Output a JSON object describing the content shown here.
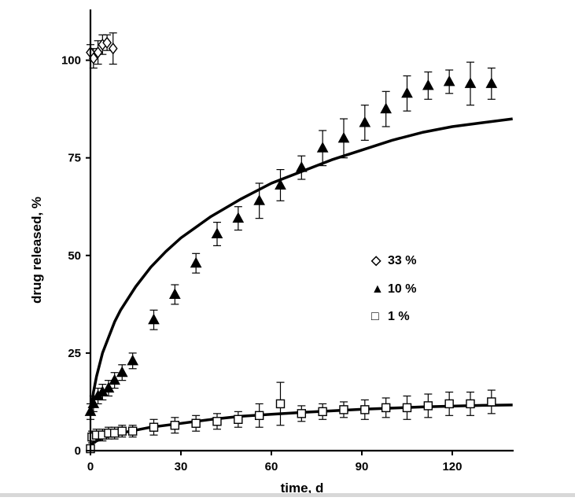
{
  "chart_data": {
    "type": "scatter",
    "title": "",
    "xlabel": "time, d",
    "ylabel": "drug released, %",
    "xlim": [
      0,
      140
    ],
    "ylim": [
      0,
      110
    ],
    "x_ticks": [
      0,
      30,
      60,
      90,
      120
    ],
    "y_ticks": [
      0,
      25,
      50,
      75,
      100
    ],
    "x_tick_labels": [
      "0",
      "30",
      "60",
      "90",
      "120"
    ],
    "y_tick_labels": [
      "0",
      "25",
      "50",
      "75",
      "100"
    ],
    "grid": false,
    "legend_position": "center-right",
    "series": [
      {
        "name": "33 %",
        "marker": "open-diamond",
        "points": [
          {
            "x": 0,
            "y": 102,
            "err": 2
          },
          {
            "x": 1,
            "y": 100.5,
            "err": 2.5
          },
          {
            "x": 2.5,
            "y": 102,
            "err": 3
          },
          {
            "x": 4,
            "y": 104,
            "err": 2.5
          },
          {
            "x": 5.5,
            "y": 104.5,
            "err": 2
          },
          {
            "x": 7.5,
            "y": 103,
            "err": 4
          }
        ]
      },
      {
        "name": "10 %",
        "marker": "filled-triangle",
        "points": [
          {
            "x": 0,
            "y": 10,
            "err": 2
          },
          {
            "x": 1,
            "y": 12,
            "err": 2
          },
          {
            "x": 2.5,
            "y": 14,
            "err": 2
          },
          {
            "x": 4,
            "y": 15,
            "err": 2
          },
          {
            "x": 6,
            "y": 16,
            "err": 2
          },
          {
            "x": 8,
            "y": 18,
            "err": 2
          },
          {
            "x": 10.5,
            "y": 20,
            "err": 2
          },
          {
            "x": 14,
            "y": 23,
            "err": 2
          },
          {
            "x": 21,
            "y": 33.5,
            "err": 2.5
          },
          {
            "x": 28,
            "y": 40,
            "err": 2.5
          },
          {
            "x": 35,
            "y": 48,
            "err": 2.5
          },
          {
            "x": 42,
            "y": 55.5,
            "err": 3
          },
          {
            "x": 49,
            "y": 59.5,
            "err": 3
          },
          {
            "x": 56,
            "y": 64,
            "err": 4.5
          },
          {
            "x": 63,
            "y": 68,
            "err": 4
          },
          {
            "x": 70,
            "y": 72.5,
            "err": 3
          },
          {
            "x": 77,
            "y": 77.5,
            "err": 4.5
          },
          {
            "x": 84,
            "y": 80,
            "err": 5
          },
          {
            "x": 91,
            "y": 84,
            "err": 4.5
          },
          {
            "x": 98,
            "y": 87.5,
            "err": 4.5
          },
          {
            "x": 105,
            "y": 91.5,
            "err": 4.5
          },
          {
            "x": 112,
            "y": 93.5,
            "err": 3.5
          },
          {
            "x": 119,
            "y": 94.5,
            "err": 3
          },
          {
            "x": 126,
            "y": 94,
            "err": 5.5
          },
          {
            "x": 133,
            "y": 94,
            "err": 4
          }
        ]
      },
      {
        "name": "1 %",
        "marker": "open-square",
        "points": [
          {
            "x": 0,
            "y": 0.5,
            "err": 0.5
          },
          {
            "x": 0.5,
            "y": 3.5,
            "err": 1.5
          },
          {
            "x": 2,
            "y": 4,
            "err": 1.5
          },
          {
            "x": 4,
            "y": 4,
            "err": 1.5
          },
          {
            "x": 6,
            "y": 4.5,
            "err": 1.5
          },
          {
            "x": 8,
            "y": 4.5,
            "err": 1.5
          },
          {
            "x": 10.5,
            "y": 5,
            "err": 1.5
          },
          {
            "x": 14,
            "y": 5,
            "err": 1.5
          },
          {
            "x": 21,
            "y": 6,
            "err": 2
          },
          {
            "x": 28,
            "y": 6.5,
            "err": 2
          },
          {
            "x": 35,
            "y": 7,
            "err": 2
          },
          {
            "x": 42,
            "y": 7.5,
            "err": 2
          },
          {
            "x": 49,
            "y": 8,
            "err": 2
          },
          {
            "x": 56,
            "y": 9,
            "err": 3
          },
          {
            "x": 63,
            "y": 12,
            "err": 5.5
          },
          {
            "x": 70,
            "y": 9.5,
            "err": 2
          },
          {
            "x": 77,
            "y": 10,
            "err": 2
          },
          {
            "x": 84,
            "y": 10.5,
            "err": 2
          },
          {
            "x": 91,
            "y": 10.5,
            "err": 2.5
          },
          {
            "x": 98,
            "y": 11,
            "err": 2.5
          },
          {
            "x": 105,
            "y": 11,
            "err": 3
          },
          {
            "x": 112,
            "y": 11.5,
            "err": 3
          },
          {
            "x": 119,
            "y": 12,
            "err": 3
          },
          {
            "x": 126,
            "y": 12,
            "err": 3
          },
          {
            "x": 133,
            "y": 12.5,
            "err": 3
          }
        ]
      }
    ],
    "fit_curves": [
      {
        "name": "10 % model fit",
        "points": [
          {
            "x": 0,
            "y": 9
          },
          {
            "x": 1,
            "y": 15
          },
          {
            "x": 2,
            "y": 19
          },
          {
            "x": 4,
            "y": 25
          },
          {
            "x": 6,
            "y": 29
          },
          {
            "x": 8,
            "y": 33
          },
          {
            "x": 10,
            "y": 36
          },
          {
            "x": 15,
            "y": 42
          },
          {
            "x": 20,
            "y": 47
          },
          {
            "x": 25,
            "y": 51
          },
          {
            "x": 30,
            "y": 54.5
          },
          {
            "x": 40,
            "y": 60
          },
          {
            "x": 50,
            "y": 64.5
          },
          {
            "x": 60,
            "y": 68.5
          },
          {
            "x": 70,
            "y": 71.5
          },
          {
            "x": 80,
            "y": 74.5
          },
          {
            "x": 90,
            "y": 77
          },
          {
            "x": 100,
            "y": 79.5
          },
          {
            "x": 110,
            "y": 81.5
          },
          {
            "x": 120,
            "y": 83
          },
          {
            "x": 130,
            "y": 84
          },
          {
            "x": 140,
            "y": 85
          }
        ]
      },
      {
        "name": "1 % model fit",
        "points": [
          {
            "x": 0,
            "y": 1.5
          },
          {
            "x": 2,
            "y": 2.5
          },
          {
            "x": 5,
            "y": 3.5
          },
          {
            "x": 10,
            "y": 4.5
          },
          {
            "x": 20,
            "y": 6
          },
          {
            "x": 30,
            "y": 7
          },
          {
            "x": 40,
            "y": 8
          },
          {
            "x": 50,
            "y": 8.8
          },
          {
            "x": 60,
            "y": 9.3
          },
          {
            "x": 70,
            "y": 9.8
          },
          {
            "x": 80,
            "y": 10.2
          },
          {
            "x": 90,
            "y": 10.6
          },
          {
            "x": 100,
            "y": 10.9
          },
          {
            "x": 110,
            "y": 11.2
          },
          {
            "x": 120,
            "y": 11.4
          },
          {
            "x": 130,
            "y": 11.6
          },
          {
            "x": 140,
            "y": 11.7
          }
        ]
      }
    ],
    "legend": [
      {
        "symbol": "◇",
        "label": "33 %"
      },
      {
        "symbol": "▲",
        "label": "10 %"
      },
      {
        "symbol": "□",
        "label": "1 %"
      }
    ]
  }
}
